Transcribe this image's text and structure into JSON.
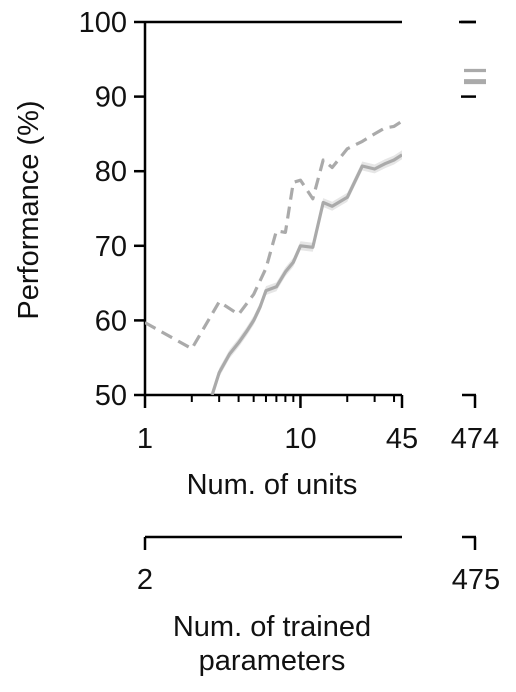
{
  "chart_data": {
    "type": "line",
    "ylabel": "Performance (%)",
    "ylim": [
      50,
      100
    ],
    "yticks": [
      "50",
      "60",
      "70",
      "80",
      "90",
      "100"
    ],
    "xlabel": "Num. of units",
    "xscale": "log",
    "xlim": [
      1,
      45
    ],
    "xticks": [
      "1",
      "10",
      "45"
    ],
    "x_break_tick": "474",
    "secondary_axis": {
      "label": "Num. of trained parameters",
      "ticks": [
        "2",
        "475"
      ]
    },
    "grid": false,
    "legend": "none",
    "colors": {
      "solid": "#aaaaaa",
      "band": "#e6e6e6",
      "dashed": "#aaaaaa",
      "axis": "#000000"
    },
    "series": [
      {
        "style": "solid",
        "x": [
          2.7,
          3,
          3.5,
          4,
          4.5,
          5,
          5.5,
          6,
          7,
          8,
          9,
          10,
          12,
          14,
          16,
          20,
          25,
          30,
          35,
          40,
          45
        ],
        "y": [
          50.0,
          53.0,
          55.5,
          57.0,
          58.5,
          60.0,
          61.8,
          64.0,
          64.5,
          66.5,
          67.8,
          70.0,
          69.8,
          75.8,
          75.3,
          76.5,
          80.7,
          80.3,
          81.0,
          81.5,
          82.2
        ],
        "band": [
          0.6,
          0.6,
          0.6,
          0.6,
          0.6,
          0.6,
          0.6,
          0.6,
          0.6,
          0.6,
          0.6,
          0.6,
          0.6,
          0.6,
          0.6,
          0.6,
          0.6,
          0.6,
          0.6,
          0.6,
          0.6
        ],
        "at_474": 92.0
      },
      {
        "style": "dashed",
        "x": [
          1,
          2,
          3,
          4,
          5,
          6,
          7,
          8,
          9,
          10,
          12,
          14,
          16,
          20,
          25,
          30,
          35,
          40,
          45
        ],
        "y": [
          59.7,
          56.2,
          62.5,
          60.8,
          63.5,
          67.0,
          72.0,
          71.8,
          78.5,
          78.8,
          76.3,
          81.5,
          80.5,
          83.0,
          84.0,
          85.0,
          85.8,
          86.0,
          86.7
        ],
        "at_474": 93.5
      }
    ]
  }
}
